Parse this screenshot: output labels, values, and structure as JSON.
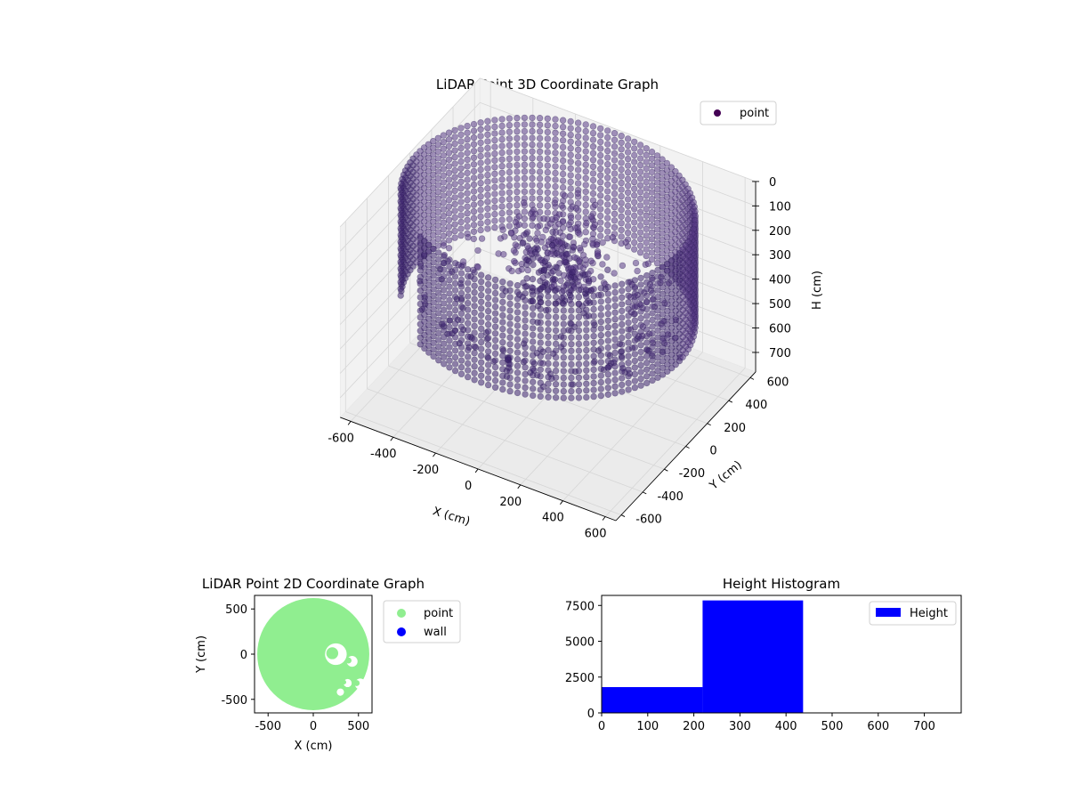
{
  "chart_data": [
    {
      "type": "scatter",
      "projection": "3d",
      "title": "LiDAR Point 3D Coordinate Graph",
      "xlabel": "X (cm)",
      "ylabel": "Y (cm)",
      "zlabel": "H (cm)",
      "xlim": [
        -650,
        650
      ],
      "ylim": [
        -650,
        650
      ],
      "zlim": [
        780,
        0
      ],
      "xticks": [
        "-600",
        "-400",
        "-200",
        "0",
        "200",
        "400",
        "600"
      ],
      "yticks": [
        "-600",
        "-400",
        "-200",
        "0",
        "200",
        "400",
        "600"
      ],
      "zticks": [
        "0",
        "100",
        "200",
        "300",
        "400",
        "500",
        "600",
        "700"
      ],
      "zaxis_inverted": true,
      "grid": true,
      "legend": "top-right",
      "series": [
        {
          "name": "point",
          "color": "#440154",
          "structure": "cylindrical wall of points",
          "wall_center": [
            0,
            0
          ],
          "wall_radius_cm": 620,
          "wall_height_range_cm": [
            0,
            440
          ],
          "interior_clusters": [
            {
              "x": 30,
              "y": 80,
              "h_range": [
                60,
                380
              ]
            },
            {
              "x": 120,
              "y": -50,
              "h_range": [
                150,
                400
              ]
            },
            {
              "x": -80,
              "y": 120,
              "h_range": [
                200,
                420
              ]
            }
          ],
          "outliers": [
            {
              "x": 340,
              "y": 560,
              "h": 780
            },
            {
              "x": 120,
              "y": 320,
              "h": 780
            },
            {
              "x": -120,
              "y": 190,
              "h": 780
            }
          ]
        }
      ]
    },
    {
      "type": "scatter",
      "title": "LiDAR Point 2D Coordinate Graph",
      "xlabel": "X (cm)",
      "ylabel": "Y (cm)",
      "xlim": [
        -650,
        650
      ],
      "ylim": [
        -650,
        650
      ],
      "xticks": [
        "-500",
        "0",
        "500"
      ],
      "yticks": [
        "-500",
        "0",
        "500"
      ],
      "legend": "outside-right",
      "series": [
        {
          "name": "point",
          "color": "#90ee90",
          "shape": "filled disc",
          "center": [
            0,
            0
          ],
          "radius": 620
        },
        {
          "name": "wall",
          "color": "#0000ff",
          "values": []
        }
      ]
    },
    {
      "type": "bar",
      "subtype": "histogram",
      "title": "Height Histogram",
      "xlabel": "",
      "ylabel": "",
      "xlim": [
        0,
        780
      ],
      "ylim": [
        0,
        8200
      ],
      "xticks": [
        "0",
        "100",
        "200",
        "300",
        "400",
        "500",
        "600",
        "700"
      ],
      "yticks": [
        "0",
        "2500",
        "5000",
        "7500"
      ],
      "legend": "top-right",
      "series": [
        {
          "name": "Height",
          "color": "#0000ff",
          "bins": [
            {
              "x0": 0,
              "x1": 219,
              "value": 1800
            },
            {
              "x0": 219,
              "x1": 437,
              "value": 7850
            },
            {
              "x0": 437,
              "x1": 656,
              "value": 0
            },
            {
              "x0": 656,
              "x1": 875,
              "value": 0
            }
          ]
        }
      ]
    }
  ]
}
